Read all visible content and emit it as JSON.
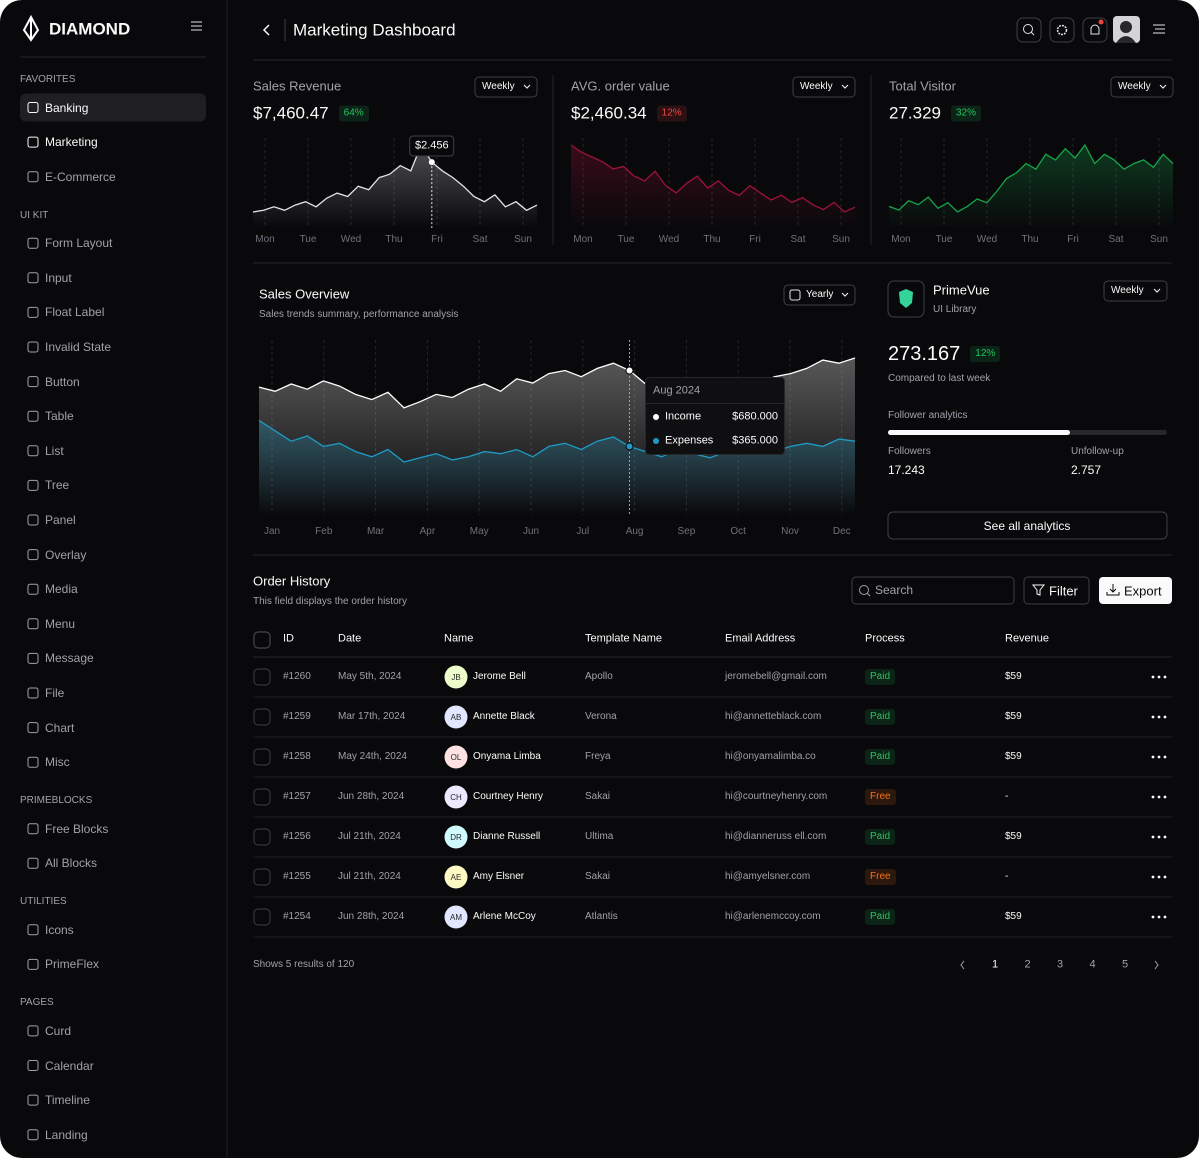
{
  "sidebar": {
    "brand": "DIAMOND",
    "sections": [
      {
        "title": "FAVORITES",
        "items": [
          "Banking",
          "Marketing",
          "E-Commerce"
        ]
      },
      {
        "title": "UI KIT",
        "items": [
          "Form Layout",
          "Input",
          "Float Label",
          "Invalid State",
          "Button",
          "Table",
          "List",
          "Tree",
          "Panel",
          "Overlay",
          "Media",
          "Menu",
          "Message",
          "File",
          "Chart",
          "Misc"
        ]
      },
      {
        "title": "PRIMEBLOCKS",
        "items": [
          "Free Blocks",
          "All Blocks"
        ]
      },
      {
        "title": "UTILITIES",
        "items": [
          "Icons",
          "PrimeFlex"
        ]
      },
      {
        "title": "PAGES",
        "items": [
          "Curd",
          "Calendar",
          "Timeline",
          "Landing"
        ]
      }
    ]
  },
  "header": {
    "title": "Marketing Dashboard"
  },
  "stat_cards": [
    {
      "type": "area",
      "title": "Sales Revenue",
      "period": "Weekly",
      "value": "$7,460.47",
      "badge": "64%",
      "badge_color": "#22c55e",
      "color": "#e4e4e7",
      "tooltip": "$2.456",
      "days": [
        "Mon",
        "Tue",
        "Wed",
        "Thu",
        "Fri",
        "Sat",
        "Sun"
      ],
      "values": [
        43,
        44,
        46,
        44,
        47,
        49,
        46,
        51,
        54,
        52,
        58,
        56,
        63,
        65,
        70,
        67,
        82,
        72,
        67,
        63,
        58,
        52,
        49,
        53,
        46,
        49,
        44,
        47
      ]
    },
    {
      "type": "area",
      "title": "AVG. order value",
      "period": "Weekly",
      "value": "$2,460.34",
      "badge": "12%",
      "badge_color": "#ef4444",
      "color": "#9f1239",
      "days": [
        "Mon",
        "Tue",
        "Wed",
        "Thu",
        "Fri",
        "Sat",
        "Sun"
      ],
      "values": [
        65,
        62,
        60,
        58,
        55,
        56,
        52,
        50,
        54,
        48,
        45,
        49,
        52,
        47,
        50,
        46,
        44,
        48,
        45,
        42,
        44,
        41,
        43,
        40,
        38,
        41,
        37,
        39
      ]
    },
    {
      "type": "area",
      "title": "Total Visitor",
      "period": "Weekly",
      "value": "27.329",
      "badge": "32%",
      "badge_color": "#22c55e",
      "color": "#16a34a",
      "days": [
        "Mon",
        "Tue",
        "Wed",
        "Thu",
        "Fri",
        "Sat",
        "Sun"
      ],
      "values": [
        47,
        45,
        50,
        48,
        52,
        46,
        49,
        44,
        47,
        51,
        49,
        55,
        62,
        65,
        70,
        67,
        75,
        72,
        78,
        73,
        80,
        70,
        75,
        72,
        67,
        70,
        72,
        68,
        75,
        70
      ]
    }
  ],
  "sales_overview": {
    "type": "area",
    "title": "Sales Overview",
    "subtitle": "Sales trends summary, performance analysis",
    "period": "Yearly",
    "categories": [
      "Jan",
      "Feb",
      "Mar",
      "Apr",
      "May",
      "Jun",
      "Jul",
      "Aug",
      "Sep",
      "Oct",
      "Nov",
      "Dec"
    ],
    "tooltip_title": "Aug 2024",
    "series": [
      {
        "name": "Income",
        "color": "#ffffff",
        "tooltip_value": "$680.000",
        "values": [
          152,
          148,
          155,
          150,
          158,
          153,
          145,
          140,
          147,
          132,
          138,
          145,
          142,
          150,
          155,
          148,
          160,
          156,
          165,
          168,
          162,
          170,
          175,
          168,
          155,
          152,
          160,
          148,
          145,
          142,
          152,
          155,
          162,
          165,
          170,
          178,
          175,
          180
        ]
      },
      {
        "name": "Expenses",
        "color": "#1e9bc4",
        "tooltip_value": "$365.000",
        "values": [
          120,
          110,
          100,
          105,
          95,
          98,
          90,
          85,
          92,
          80,
          84,
          88,
          82,
          85,
          90,
          88,
          92,
          85,
          95,
          98,
          92,
          100,
          104,
          95,
          90,
          85,
          92,
          88,
          84,
          90,
          88,
          92,
          90,
          95,
          98,
          95,
          102,
          100
        ]
      }
    ]
  },
  "primevue": {
    "name": "PrimeVue",
    "subtitle": "UI Library",
    "period": "Weekly",
    "value": "273.167",
    "badge": "12%",
    "caption": "Compared to last week",
    "analytics_label": "Follower analytics",
    "stats": [
      {
        "label": "Followers",
        "value": "17.243"
      },
      {
        "label": "Unfollow-up",
        "value": "2.757"
      }
    ],
    "button": "See all analytics"
  },
  "orders": {
    "title": "Order History",
    "subtitle": "This field displays the order history",
    "search_placeholder": "Search",
    "filter": "Filter",
    "export": "Export",
    "columns": [
      "ID",
      "Date",
      "Name",
      "Template Name",
      "Email Address",
      "Process",
      "Revenue"
    ],
    "rows": [
      {
        "id": "#1260",
        "date": "May 5th, 2024",
        "initials": "JB",
        "avatar_color": "#ecfccb",
        "name": "Jerome Bell",
        "template": "Apollo",
        "email": "jeromebell@gmail.com",
        "process": "Paid",
        "revenue": "$59"
      },
      {
        "id": "#1259",
        "date": "Mar 17th, 2024",
        "initials": "AB",
        "avatar_color": "#e0e7ff",
        "name": "Annette Black",
        "template": "Verona",
        "email": "hi@annetteblack.com",
        "process": "Paid",
        "revenue": "$59"
      },
      {
        "id": "#1258",
        "date": "May 24th, 2024",
        "initials": "OL",
        "avatar_color": "#fee2e2",
        "name": "Onyama Limba",
        "template": "Freya",
        "email": "hi@onyamalimba.co",
        "process": "Paid",
        "revenue": "$59"
      },
      {
        "id": "#1257",
        "date": "Jun 28th, 2024",
        "initials": "CH",
        "avatar_color": "#ede9fe",
        "name": "Courtney Henry",
        "template": "Sakai",
        "email": "hi@courtneyhenry.com",
        "process": "Free",
        "revenue": "-"
      },
      {
        "id": "#1256",
        "date": "Jul 21th, 2024",
        "initials": "DR",
        "avatar_color": "#cffafe",
        "name": "Dianne Russell",
        "template": "Ultima",
        "email": "hi@dianneruss ell.com",
        "process": "Paid",
        "revenue": "$59"
      },
      {
        "id": "#1255",
        "date": "Jul 21th, 2024",
        "initials": "AE",
        "avatar_color": "#fef9c3",
        "name": "Amy Elsner",
        "template": "Sakai",
        "email": "hi@amyelsner.com",
        "process": "Free",
        "revenue": "-"
      },
      {
        "id": "#1254",
        "date": "Jun 28th, 2024",
        "initials": "AM",
        "avatar_color": "#e0e7ff",
        "name": "Arlene McCoy",
        "template": "Atlantis",
        "email": "hi@arlenemccoy.com",
        "process": "Paid",
        "revenue": "$59"
      }
    ],
    "footer": "Shows 5 results of 120",
    "pages": [
      1,
      2,
      3,
      4,
      5
    ]
  }
}
